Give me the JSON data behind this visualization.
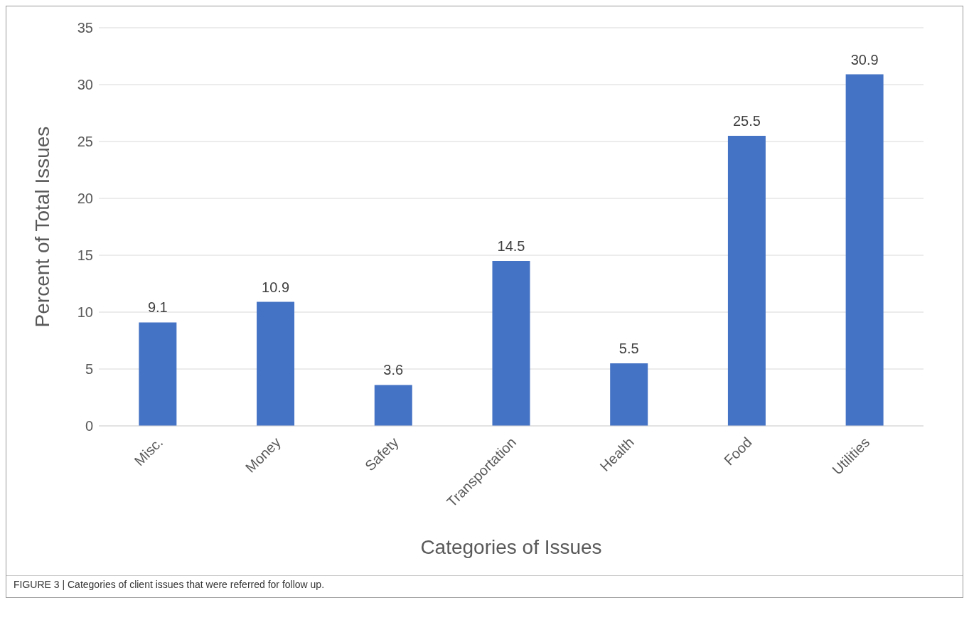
{
  "chart_data": {
    "type": "bar",
    "xlabel": "Categories of Issues",
    "ylabel": "Percent of Total Issues",
    "categories": [
      "Misc.",
      "Money",
      "Safety",
      "Transportation",
      "Health",
      "Food",
      "Utilities"
    ],
    "values": [
      9.1,
      10.9,
      3.6,
      14.5,
      5.5,
      25.5,
      30.9
    ],
    "color": "#4472c4",
    "ylim": [
      0,
      35
    ],
    "yticks": [
      0,
      5,
      10,
      15,
      20,
      25,
      30,
      35
    ],
    "grid": "y",
    "data_labels": true,
    "annotations": [
      "FIGURE 3 | Categories of client issues that were referred for follow up."
    ]
  }
}
